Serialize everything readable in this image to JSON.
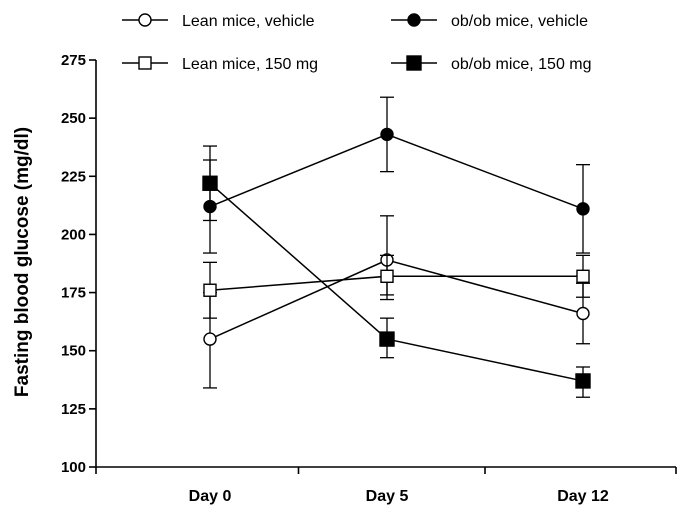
{
  "chart_data": {
    "type": "line",
    "title": "",
    "xlabel": "",
    "ylabel": "Fasting blood glucose (mg/dl)",
    "categories": [
      "Day 0",
      "Day 5",
      "Day 12"
    ],
    "ylim": [
      100,
      275
    ],
    "yticks": [
      100,
      125,
      150,
      175,
      200,
      225,
      250,
      275
    ],
    "grid": false,
    "legend_position": "top",
    "series": [
      {
        "name": "Lean mice, vehicle",
        "marker": "circle",
        "filled": false,
        "values": [
          155,
          189,
          166
        ],
        "err_low": [
          134,
          172,
          153
        ],
        "err_high": [
          175,
          208,
          179
        ]
      },
      {
        "name": "ob/ob mice, vehicle",
        "marker": "circle",
        "filled": true,
        "values": [
          212,
          243,
          211
        ],
        "err_low": [
          192,
          227,
          192
        ],
        "err_high": [
          232,
          259,
          230
        ]
      },
      {
        "name": "Lean mice, 150 mg",
        "marker": "square",
        "filled": false,
        "values": [
          176,
          182,
          182
        ],
        "err_low": [
          164,
          174,
          173
        ],
        "err_high": [
          188,
          191,
          191
        ]
      },
      {
        "name": "ob/ob mice, 150 mg",
        "marker": "square",
        "filled": true,
        "values": [
          222,
          155,
          137
        ],
        "err_low": [
          206,
          147,
          130
        ],
        "err_high": [
          238,
          164,
          143
        ]
      }
    ]
  }
}
